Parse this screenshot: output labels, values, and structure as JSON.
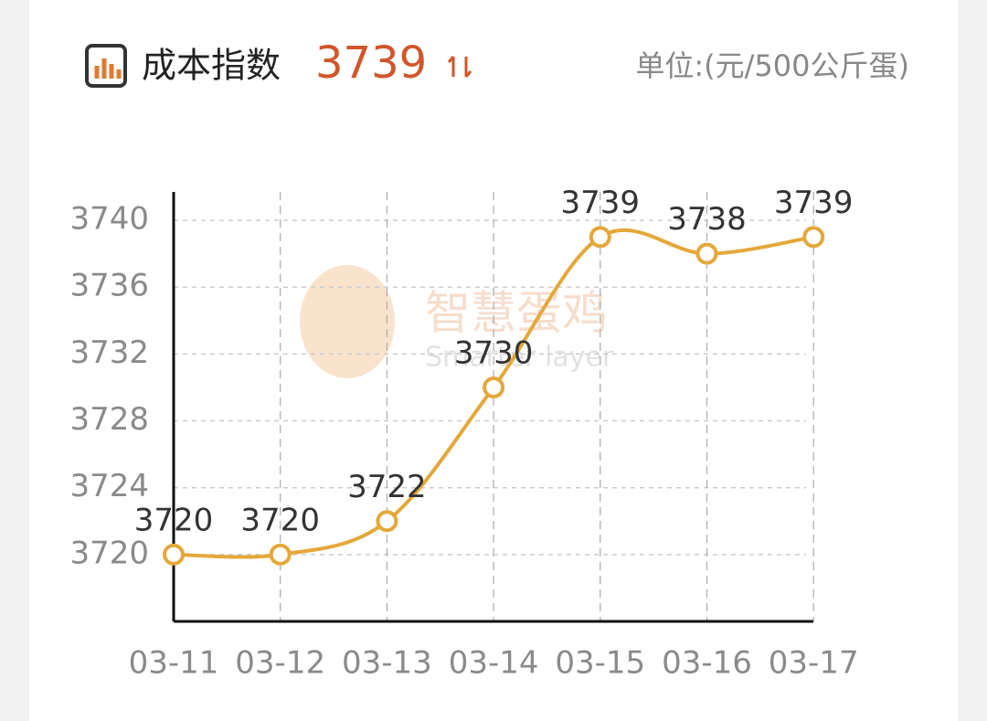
{
  "chart_data": {
    "type": "line",
    "title": "成本指数",
    "headline_value": "3739",
    "unit": "单位:(元/500公斤蛋)",
    "watermark": "智慧蛋鸡",
    "watermark_sub": "Smarter layer",
    "categories": [
      "03-11",
      "03-12",
      "03-13",
      "03-14",
      "03-15",
      "03-16",
      "03-17"
    ],
    "values": [
      3720,
      3720,
      3722,
      3730,
      3739,
      3738,
      3739
    ],
    "color": "#e4a83a",
    "ylim": [
      3716,
      3741.7
    ],
    "yticks": [
      3720,
      3724,
      3728,
      3732,
      3736,
      3740
    ],
    "grid": true
  }
}
